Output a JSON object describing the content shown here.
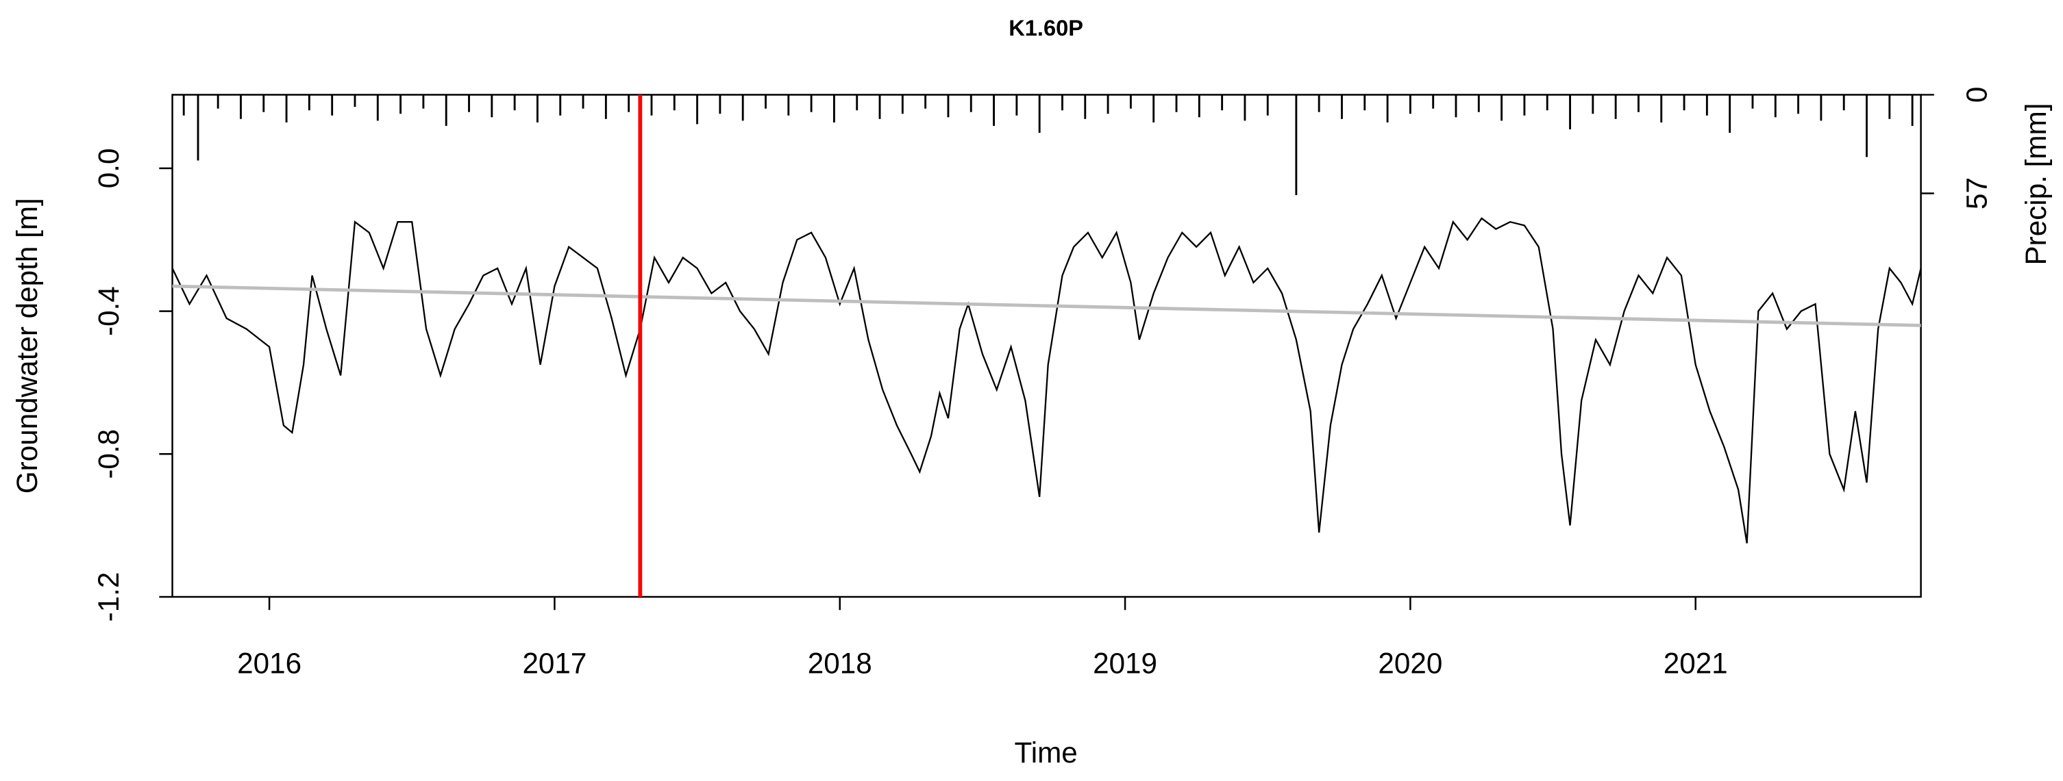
{
  "chart_data": {
    "type": "line",
    "title": "K1.60P",
    "xlabel": "Time",
    "ylabel": "Groundwater depth [m]",
    "y2label": "Precip. [mm]",
    "xlim": [
      2015.66,
      2021.79
    ],
    "xticks": [
      2016,
      2017,
      2018,
      2019,
      2020,
      2021
    ],
    "ylim": [
      -1.2,
      0.206
    ],
    "yticks": [
      -1.2,
      -0.8,
      -0.4,
      {
        "value": 0,
        "label": "0.0"
      }
    ],
    "y2lim": [
      290.3,
      0
    ],
    "y2ticks": [
      0,
      57
    ],
    "vline": {
      "x": 2017.3,
      "color": "#ff0000"
    },
    "series": [
      {
        "type": "line",
        "color": "#000000",
        "x": [
          2015.66,
          2015.72,
          2015.78,
          2015.85,
          2015.92,
          2016.0,
          2016.05,
          2016.08,
          2016.12,
          2016.15,
          2016.2,
          2016.25,
          2016.3,
          2016.35,
          2016.4,
          2016.45,
          2016.5,
          2016.55,
          2016.6,
          2016.65,
          2016.7,
          2016.75,
          2016.8,
          2016.85,
          2016.9,
          2016.95,
          2017.0,
          2017.05,
          2017.1,
          2017.15,
          2017.2,
          2017.25,
          2017.3,
          2017.35,
          2017.4,
          2017.45,
          2017.5,
          2017.55,
          2017.6,
          2017.65,
          2017.7,
          2017.75,
          2017.8,
          2017.85,
          2017.9,
          2017.95,
          2018.0,
          2018.05,
          2018.1,
          2018.15,
          2018.2,
          2018.25,
          2018.28,
          2018.32,
          2018.35,
          2018.38,
          2018.42,
          2018.45,
          2018.5,
          2018.55,
          2018.6,
          2018.65,
          2018.7,
          2018.73,
          2018.78,
          2018.82,
          2018.87,
          2018.92,
          2018.97,
          2019.02,
          2019.05,
          2019.1,
          2019.15,
          2019.2,
          2019.25,
          2019.3,
          2019.35,
          2019.4,
          2019.45,
          2019.5,
          2019.55,
          2019.6,
          2019.65,
          2019.68,
          2019.72,
          2019.76,
          2019.8,
          2019.85,
          2019.9,
          2019.95,
          2020.0,
          2020.05,
          2020.1,
          2020.15,
          2020.2,
          2020.25,
          2020.3,
          2020.35,
          2020.4,
          2020.45,
          2020.5,
          2020.53,
          2020.56,
          2020.6,
          2020.65,
          2020.7,
          2020.75,
          2020.8,
          2020.85,
          2020.9,
          2020.95,
          2021.0,
          2021.05,
          2021.1,
          2021.15,
          2021.18,
          2021.22,
          2021.27,
          2021.32,
          2021.37,
          2021.42,
          2021.47,
          2021.52,
          2021.56,
          2021.6,
          2021.64,
          2021.68,
          2021.72,
          2021.76,
          2021.79
        ],
        "values": [
          -0.28,
          -0.38,
          -0.3,
          -0.42,
          -0.45,
          -0.5,
          -0.72,
          -0.74,
          -0.55,
          -0.3,
          -0.45,
          -0.58,
          -0.15,
          -0.18,
          -0.28,
          -0.15,
          -0.15,
          -0.45,
          -0.58,
          -0.45,
          -0.38,
          -0.3,
          -0.28,
          -0.38,
          -0.28,
          -0.55,
          -0.33,
          -0.22,
          -0.25,
          -0.28,
          -0.42,
          -0.58,
          -0.45,
          -0.25,
          -0.32,
          -0.25,
          -0.28,
          -0.35,
          -0.32,
          -0.4,
          -0.45,
          -0.52,
          -0.32,
          -0.2,
          -0.18,
          -0.25,
          -0.38,
          -0.28,
          -0.48,
          -0.62,
          -0.72,
          -0.8,
          -0.85,
          -0.75,
          -0.63,
          -0.7,
          -0.45,
          -0.38,
          -0.52,
          -0.62,
          -0.5,
          -0.65,
          -0.92,
          -0.55,
          -0.3,
          -0.22,
          -0.18,
          -0.25,
          -0.18,
          -0.32,
          -0.48,
          -0.35,
          -0.25,
          -0.18,
          -0.22,
          -0.18,
          -0.3,
          -0.22,
          -0.32,
          -0.28,
          -0.35,
          -0.48,
          -0.68,
          -1.02,
          -0.72,
          -0.55,
          -0.45,
          -0.38,
          -0.3,
          -0.42,
          -0.32,
          -0.22,
          -0.28,
          -0.15,
          -0.2,
          -0.14,
          -0.17,
          -0.15,
          -0.16,
          -0.22,
          -0.45,
          -0.8,
          -1.0,
          -0.65,
          -0.48,
          -0.55,
          -0.4,
          -0.3,
          -0.35,
          -0.25,
          -0.3,
          -0.55,
          -0.68,
          -0.78,
          -0.9,
          -1.05,
          -0.4,
          -0.35,
          -0.45,
          -0.4,
          -0.38,
          -0.8,
          -0.9,
          -0.68,
          -0.88,
          -0.45,
          -0.28,
          -0.32,
          -0.38,
          -0.28
        ]
      },
      {
        "type": "line",
        "color": "#bebebe",
        "x": [
          2015.66,
          2021.79
        ],
        "values": [
          -0.33,
          -0.44
        ]
      },
      {
        "type": "bar",
        "color": "#000000",
        "axis": "y2",
        "x": [
          2015.7,
          2015.75,
          2015.82,
          2015.9,
          2015.98,
          2016.06,
          2016.14,
          2016.22,
          2016.3,
          2016.38,
          2016.46,
          2016.54,
          2016.62,
          2016.7,
          2016.78,
          2016.86,
          2016.94,
          2017.02,
          2017.1,
          2017.18,
          2017.26,
          2017.34,
          2017.42,
          2017.5,
          2017.58,
          2017.66,
          2017.74,
          2017.82,
          2017.9,
          2017.98,
          2018.06,
          2018.14,
          2018.22,
          2018.3,
          2018.38,
          2018.46,
          2018.54,
          2018.62,
          2018.7,
          2018.78,
          2018.86,
          2018.94,
          2019.02,
          2019.1,
          2019.18,
          2019.26,
          2019.34,
          2019.42,
          2019.5,
          2019.6,
          2019.68,
          2019.76,
          2019.84,
          2019.92,
          2020.0,
          2020.08,
          2020.16,
          2020.24,
          2020.32,
          2020.4,
          2020.48,
          2020.56,
          2020.64,
          2020.72,
          2020.8,
          2020.88,
          2020.96,
          2021.04,
          2021.12,
          2021.2,
          2021.28,
          2021.36,
          2021.44,
          2021.52,
          2021.6,
          2021.68,
          2021.76
        ],
        "values": [
          12,
          38,
          8,
          14,
          10,
          16,
          9,
          12,
          7,
          15,
          11,
          8,
          18,
          10,
          13,
          9,
          16,
          12,
          8,
          14,
          10,
          12,
          9,
          17,
          11,
          15,
          8,
          12,
          10,
          16,
          9,
          14,
          11,
          8,
          13,
          10,
          18,
          12,
          22,
          9,
          14,
          11,
          8,
          16,
          10,
          13,
          9,
          15,
          12,
          58,
          10,
          14,
          9,
          16,
          11,
          8,
          13,
          10,
          15,
          12,
          9,
          20,
          11,
          14,
          10,
          16,
          9,
          12,
          22,
          8,
          13,
          11,
          15,
          9,
          36,
          14,
          18
        ]
      }
    ]
  }
}
